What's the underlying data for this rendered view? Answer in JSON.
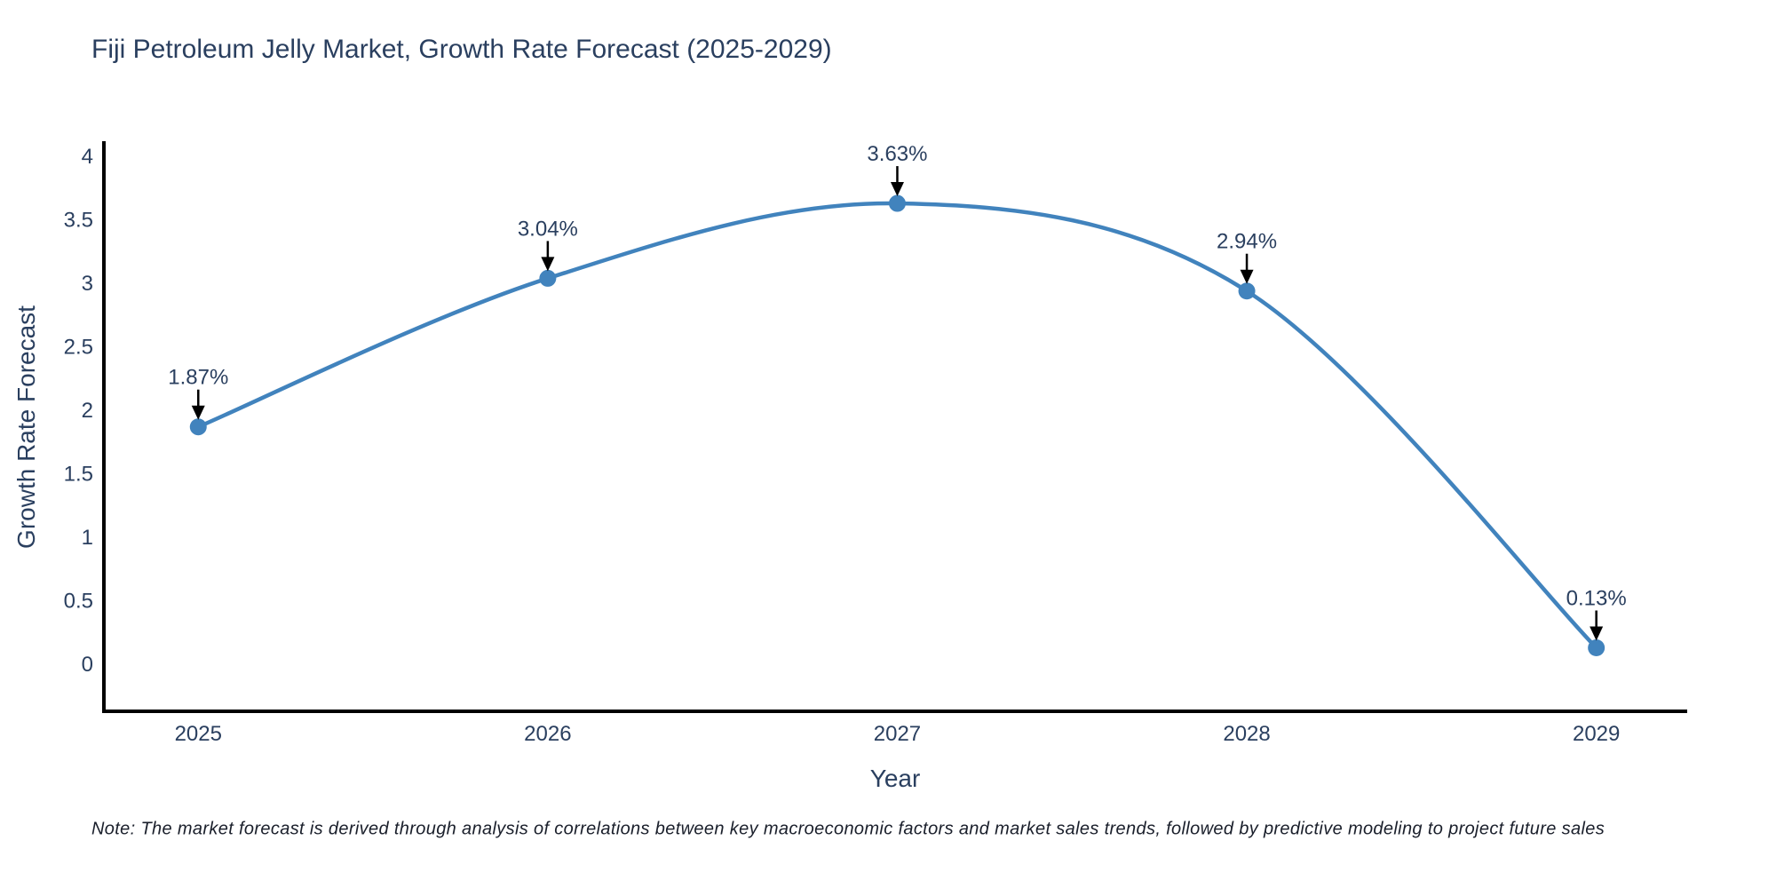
{
  "chart_data": {
    "type": "line",
    "title": "Fiji Petroleum Jelly Market, Growth Rate Forecast (2025-2029)",
    "xlabel": "Year",
    "ylabel": "Growth Rate Forecast",
    "x": [
      2025,
      2026,
      2027,
      2028,
      2029
    ],
    "values": [
      1.87,
      3.04,
      3.63,
      2.94,
      0.13
    ],
    "point_labels": [
      "1.87%",
      "3.04%",
      "3.63%",
      "2.94%",
      "0.13%"
    ],
    "xtick_labels": [
      "2025",
      "2026",
      "2027",
      "2028",
      "2029"
    ],
    "yticks": [
      0,
      0.5,
      1,
      1.5,
      2,
      2.5,
      3,
      3.5,
      4
    ],
    "ytick_labels": [
      "0",
      "0.5",
      "1",
      "1.5",
      "2",
      "2.5",
      "3",
      "3.5",
      "4"
    ],
    "xlim": [
      2024.73,
      2029.26
    ],
    "ylim": [
      -0.37,
      4.12
    ],
    "grid": false,
    "legend": null,
    "line_shape": "spline",
    "colors": {
      "line": "#4183bd",
      "marker": "#4183bd",
      "axis": "#000000",
      "text": "#2a3f5f",
      "annotation_arrow": "#000000"
    }
  },
  "note": {
    "text": "Note: The market forecast is derived through analysis of correlations between key macroeconomic factors and market sales trends, followed by predictive modeling to project future sales"
  }
}
